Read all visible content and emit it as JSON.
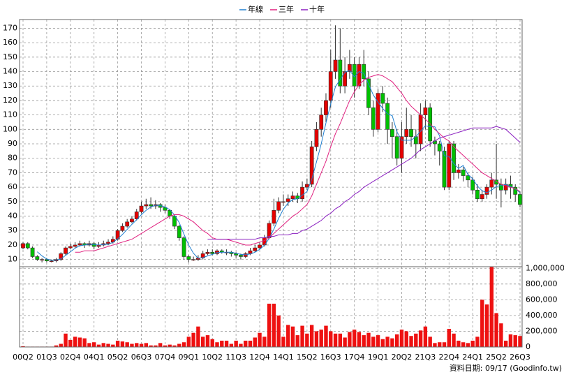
{
  "chart_data": {
    "type": "candlestick",
    "categories": [
      "00Q2",
      null,
      null,
      null,
      null,
      "01Q3",
      null,
      null,
      null,
      null,
      "02Q4",
      null,
      null,
      null,
      null,
      "04Q1",
      null,
      null,
      null,
      null,
      "05Q2",
      null,
      null,
      null,
      null,
      "06Q3",
      null,
      null,
      null,
      null,
      "07Q4",
      null,
      null,
      null,
      null,
      "09Q1",
      null,
      null,
      null,
      null,
      "10Q2",
      null,
      null,
      null,
      null,
      "11Q3",
      null,
      null,
      null,
      null,
      "12Q4",
      null,
      null,
      null,
      null,
      "14Q1",
      null,
      null,
      null,
      null,
      "15Q2",
      null,
      null,
      null,
      null,
      "16Q3",
      null,
      null,
      null,
      null,
      "17Q4",
      null,
      null,
      null,
      null,
      "19Q1",
      null,
      null,
      null,
      null,
      "20Q2",
      null,
      null,
      null,
      null,
      "21Q3",
      null,
      null,
      null,
      null,
      "22Q4",
      null,
      null,
      null,
      null,
      "24Q1",
      null,
      null,
      null,
      null,
      "25Q2",
      null,
      null,
      null,
      null,
      "26Q3"
    ],
    "open": [
      18,
      21,
      18,
      12,
      10,
      10,
      9,
      9,
      10,
      14,
      18,
      19,
      20,
      21,
      20,
      21,
      19,
      20,
      21,
      22,
      24,
      30,
      33,
      36,
      38,
      43,
      47,
      48,
      47,
      48,
      46,
      44,
      40,
      33,
      25,
      12,
      10,
      10,
      11,
      14,
      15,
      14,
      16,
      15,
      15,
      14,
      13,
      12,
      14,
      16,
      18,
      20,
      25,
      35,
      44,
      50,
      50,
      52,
      54,
      52,
      60,
      62,
      88,
      100,
      110,
      120,
      140,
      148,
      130,
      140,
      145,
      130,
      145,
      135,
      115,
      100,
      125,
      118,
      100,
      95,
      80,
      95,
      100,
      95,
      90,
      110,
      115,
      92,
      90,
      85,
      60,
      90,
      70,
      72,
      68,
      65,
      58,
      52,
      55,
      60,
      65,
      62,
      58,
      62,
      60,
      55
    ],
    "high": [
      22,
      22,
      19,
      13,
      11,
      11,
      10,
      11,
      15,
      19,
      21,
      22,
      23,
      22,
      23,
      22,
      22,
      23,
      24,
      26,
      31,
      35,
      38,
      40,
      45,
      50,
      52,
      53,
      51,
      49,
      48,
      45,
      41,
      34,
      26,
      13,
      12,
      13,
      16,
      17,
      17,
      17,
      17,
      17,
      16,
      15,
      14,
      15,
      18,
      20,
      22,
      27,
      37,
      52,
      53,
      55,
      55,
      57,
      56,
      64,
      66,
      92,
      105,
      115,
      125,
      155,
      172,
      170,
      150,
      155,
      150,
      150,
      155,
      140,
      120,
      128,
      130,
      122,
      105,
      100,
      105,
      115,
      110,
      100,
      118,
      120,
      118,
      95,
      92,
      88,
      92,
      92,
      76,
      74,
      70,
      67,
      62,
      58,
      62,
      70,
      90,
      66,
      66,
      68,
      62,
      57
    ],
    "low": [
      17,
      17,
      11,
      9,
      8,
      8,
      8,
      8,
      9,
      13,
      17,
      18,
      19,
      18,
      19,
      17,
      18,
      19,
      20,
      21,
      23,
      29,
      32,
      35,
      37,
      42,
      45,
      45,
      45,
      43,
      42,
      38,
      31,
      23,
      10,
      8,
      9,
      9,
      10,
      13,
      13,
      13,
      14,
      13,
      12,
      11,
      10,
      11,
      13,
      15,
      17,
      19,
      24,
      33,
      42,
      47,
      47,
      50,
      49,
      50,
      58,
      60,
      85,
      95,
      105,
      115,
      135,
      125,
      125,
      135,
      122,
      128,
      130,
      110,
      95,
      98,
      112,
      90,
      80,
      75,
      70,
      90,
      88,
      80,
      85,
      100,
      88,
      82,
      75,
      58,
      58,
      65,
      66,
      64,
      60,
      55,
      50,
      50,
      52,
      55,
      52,
      46,
      55,
      52,
      50,
      46
    ],
    "close": [
      21,
      18,
      12,
      10,
      10,
      9,
      9,
      10,
      14,
      18,
      19,
      20,
      21,
      20,
      21,
      19,
      20,
      21,
      22,
      24,
      30,
      33,
      36,
      38,
      43,
      47,
      48,
      47,
      48,
      46,
      44,
      40,
      33,
      25,
      12,
      10,
      10,
      11,
      14,
      15,
      14,
      16,
      15,
      15,
      14,
      13,
      12,
      14,
      16,
      18,
      20,
      25,
      35,
      44,
      50,
      50,
      52,
      54,
      52,
      60,
      62,
      88,
      100,
      110,
      120,
      140,
      148,
      130,
      140,
      145,
      130,
      145,
      135,
      115,
      100,
      125,
      118,
      100,
      95,
      80,
      95,
      100,
      95,
      90,
      110,
      115,
      92,
      90,
      85,
      60,
      90,
      70,
      72,
      68,
      65,
      58,
      52,
      55,
      60,
      65,
      62,
      58,
      62,
      60,
      55,
      48
    ],
    "up_color": "#e60000",
    "down_color": "#00c000",
    "ylim": [
      5,
      176
    ],
    "yticks": [
      10,
      20,
      30,
      40,
      50,
      60,
      70,
      80,
      90,
      100,
      110,
      120,
      130,
      140,
      150,
      160,
      170
    ],
    "grid": true,
    "lines": [
      {
        "name": "年線",
        "color": "#1f7fd0",
        "values": [
          null,
          null,
          null,
          15.3,
          12.5,
          10.3,
          9.5,
          9.5,
          10.5,
          12.8,
          15.3,
          17.8,
          19.5,
          20,
          20.5,
          20.3,
          20,
          20.3,
          20.5,
          21.8,
          24.3,
          27.3,
          30.8,
          34.3,
          37.5,
          41,
          44,
          46.3,
          47.5,
          47.3,
          46.3,
          44.5,
          40.8,
          35.5,
          27.5,
          20,
          14.3,
          10.8,
          11.3,
          12.5,
          13.5,
          14.8,
          15,
          15,
          15,
          14.3,
          13.5,
          13.3,
          13.8,
          15,
          17,
          19.8,
          24.5,
          31,
          38.5,
          44.8,
          49,
          51.5,
          52,
          54.5,
          57,
          65.5,
          77.5,
          90,
          104.5,
          117.5,
          129.5,
          134.5,
          139.5,
          140.8,
          136.3,
          140,
          138.8,
          131.3,
          123.8,
          118.8,
          114.5,
          110.8,
          109.5,
          98.3,
          92.5,
          92.5,
          92.5,
          95,
          98.8,
          102.5,
          101.8,
          101.8,
          95.5,
          81.8,
          81.3,
          76.3,
          73,
          75,
          68.8,
          65.8,
          60.8,
          57.5,
          56.3,
          58,
          60.5,
          61.3,
          61.8,
          60.5,
          58.8,
          56.3
        ]
      },
      {
        "name": "三年",
        "color": "#e0207f",
        "values": [
          null,
          null,
          null,
          null,
          null,
          null,
          null,
          null,
          null,
          null,
          null,
          15,
          15,
          16,
          16,
          16,
          17,
          18,
          19,
          20,
          21,
          22,
          23,
          24,
          26,
          28,
          30,
          32,
          34,
          36,
          38,
          40,
          41,
          41,
          40,
          38,
          36,
          33,
          30,
          28,
          25,
          24,
          24,
          24,
          23,
          22,
          21,
          20,
          20,
          21,
          22,
          23,
          25,
          28,
          31,
          34,
          37,
          40,
          42,
          45,
          48,
          54,
          62,
          70,
          78,
          88,
          97,
          104,
          112,
          120,
          126,
          131,
          134,
          136,
          137,
          138,
          137,
          135,
          133,
          129,
          125,
          120,
          116,
          113,
          110,
          107,
          104,
          100,
          97,
          94,
          92,
          88,
          85,
          82,
          79,
          76,
          73,
          70,
          68,
          66,
          64,
          62,
          61,
          60,
          59,
          57
        ]
      },
      {
        "name": "十年",
        "color": "#8a1fc0",
        "values": [
          null,
          null,
          null,
          null,
          null,
          null,
          null,
          null,
          null,
          null,
          null,
          null,
          null,
          null,
          null,
          null,
          null,
          null,
          null,
          null,
          null,
          null,
          null,
          null,
          null,
          null,
          null,
          null,
          null,
          null,
          null,
          null,
          null,
          null,
          null,
          null,
          null,
          null,
          null,
          24,
          24,
          24,
          24,
          24,
          24,
          24,
          24,
          24,
          24,
          24,
          25,
          25,
          26,
          26,
          27,
          27,
          27,
          28,
          28,
          30,
          31,
          33,
          35,
          37,
          40,
          42,
          45,
          47,
          50,
          52,
          55,
          57,
          60,
          62,
          64,
          66,
          68,
          70,
          72,
          74,
          76,
          78,
          80,
          83,
          86,
          88,
          90,
          92,
          94,
          95,
          96,
          97,
          98,
          99,
          100,
          101,
          101,
          101,
          101,
          101,
          102,
          101,
          100,
          97,
          94,
          91
        ]
      }
    ],
    "volume": {
      "color": "#ee1111",
      "values": [
        10000,
        5000,
        5000,
        5000,
        5000,
        5000,
        5000,
        20000,
        40000,
        170000,
        90000,
        130000,
        120000,
        110000,
        50000,
        60000,
        30000,
        50000,
        40000,
        30000,
        80000,
        70000,
        60000,
        40000,
        50000,
        40000,
        50000,
        20000,
        20000,
        50000,
        20000,
        30000,
        20000,
        40000,
        60000,
        130000,
        180000,
        260000,
        130000,
        150000,
        100000,
        60000,
        80000,
        80000,
        40000,
        80000,
        40000,
        80000,
        80000,
        120000,
        180000,
        130000,
        550000,
        550000,
        400000,
        130000,
        280000,
        260000,
        150000,
        270000,
        170000,
        280000,
        200000,
        220000,
        270000,
        200000,
        170000,
        170000,
        120000,
        190000,
        220000,
        190000,
        150000,
        180000,
        130000,
        150000,
        100000,
        130000,
        110000,
        160000,
        220000,
        200000,
        140000,
        170000,
        210000,
        260000,
        130000,
        50000,
        60000,
        60000,
        230000,
        170000,
        80000,
        60000,
        50000,
        80000,
        130000,
        600000,
        540000,
        1020000,
        430000,
        300000,
        80000,
        160000,
        150000,
        140000
      ],
      "ylim": [
        0,
        1020000
      ],
      "yticks": [
        0,
        {
          "value": 200000,
          "label": "200,000"
        },
        {
          "value": 400000,
          "label": "400,000"
        },
        {
          "value": 600000,
          "label": "600,000"
        },
        {
          "value": 800000,
          "label": "800,000"
        },
        {
          "value": 1000000,
          "label": "1,000,000"
        }
      ]
    },
    "footer": "資料日期: 09/17 (Goodinfo.tw)"
  }
}
